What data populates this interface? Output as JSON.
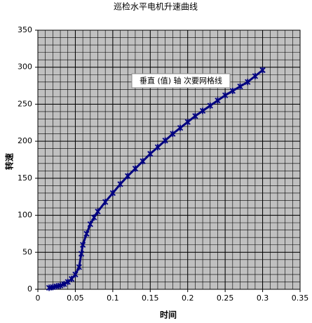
{
  "chart_data": {
    "type": "line",
    "title": "巡检水平电机升速曲线",
    "x_label": "时间",
    "y_label": "转速",
    "annotation": "垂直 (值) 轴 次要网格线",
    "x": [
      0.015,
      0.02,
      0.025,
      0.03,
      0.035,
      0.04,
      0.045,
      0.05,
      0.055,
      0.058,
      0.06,
      0.065,
      0.07,
      0.075,
      0.08,
      0.09,
      0.1,
      0.11,
      0.12,
      0.13,
      0.14,
      0.15,
      0.16,
      0.17,
      0.18,
      0.19,
      0.2,
      0.21,
      0.22,
      0.23,
      0.24,
      0.25,
      0.26,
      0.27,
      0.28,
      0.29,
      0.3
    ],
    "series": [
      {
        "name": "转速",
        "color": "#000080",
        "values": [
          2,
          3,
          4,
          5,
          7,
          10,
          14,
          20,
          30,
          48,
          60,
          75,
          88,
          97,
          105,
          118,
          130,
          142,
          153,
          163,
          173,
          183,
          192,
          201,
          210,
          218,
          226,
          234,
          241,
          248,
          255,
          262,
          268,
          274,
          280,
          288,
          296
        ]
      }
    ],
    "xlim": [
      0,
      0.35
    ],
    "xticks": [
      0,
      0.05,
      0.1,
      0.15,
      0.2,
      0.25,
      0.3,
      0.35
    ],
    "ylim": [
      0,
      350
    ],
    "yticks": [
      0,
      50,
      100,
      150,
      200,
      250,
      300,
      350
    ],
    "grid": true,
    "minor_grid": {
      "x": 0.01,
      "y": 10
    }
  }
}
